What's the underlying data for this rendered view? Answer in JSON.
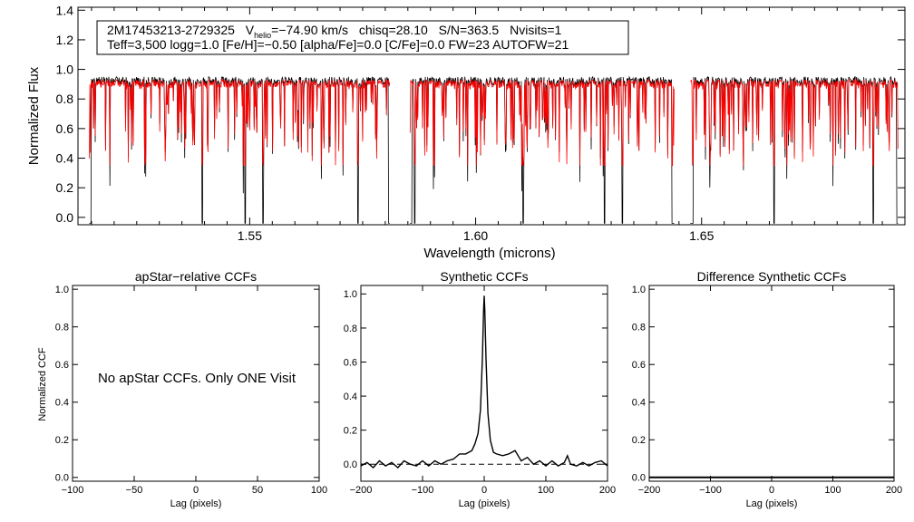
{
  "figure": {
    "star_id": "2M17453213-2729325",
    "vhelio_label": "V",
    "vhelio_subscript": "helio",
    "vhelio_value": "=−74.90 km/s",
    "chisq": "chisq=28.10",
    "snr": "S/N=363.5",
    "nvisits": "Nvisits=1",
    "params_line": "Teff=3,500 logg=1.0 [Fe/H]=−0.50 [alpha/Fe]=0.0 [C/Fe]=0.0 FW=23 AUTOFW=21"
  },
  "colors": {
    "observed": "#000000",
    "model": "#ff0000",
    "frame": "#000000"
  },
  "chart_data": [
    {
      "id": "spectrum",
      "type": "line",
      "title": "",
      "xlabel": "Wavelength (microns)",
      "ylabel": "Normalized Flux",
      "xlim": [
        1.512,
        1.695
      ],
      "ylim": [
        -0.05,
        1.42
      ],
      "xticks": [
        1.55,
        1.6,
        1.65
      ],
      "xtick_labels": [
        "1.55",
        "1.60",
        "1.65"
      ],
      "yticks": [
        0.0,
        0.2,
        0.4,
        0.6,
        0.8,
        1.0,
        1.2,
        1.4
      ],
      "ytick_labels": [
        "0.0",
        "0.2",
        "0.4",
        "0.6",
        "0.8",
        "1.0",
        "1.2",
        "1.4"
      ],
      "detector_chips": [
        [
          1.5145,
          1.581
        ],
        [
          1.5855,
          1.644
        ],
        [
          1.6475,
          1.6935
        ]
      ],
      "deep_lines": [
        1.5145,
        1.5395,
        1.549,
        1.553,
        1.574,
        1.5865,
        1.6105,
        1.6285,
        1.6325,
        1.6435,
        1.648,
        1.666,
        1.688
      ],
      "series": [
        {
          "name": "Observed spectrum",
          "color": "#000000",
          "continuum": 0.97
        },
        {
          "name": "Best-fit synthetic",
          "color": "#ff0000",
          "continuum": 0.95
        }
      ]
    },
    {
      "id": "apstar-ccf",
      "type": "line",
      "title": "apStar−relative CCFs",
      "xlabel": "Lag (pixels)",
      "ylabel": "Normalized CCF",
      "xlim": [
        -100,
        100
      ],
      "ylim": [
        -0.02,
        1.02
      ],
      "xticks": [
        -100,
        -50,
        0,
        50,
        100
      ],
      "xtick_labels": [
        "−100",
        "−50",
        "0",
        "50",
        "100"
      ],
      "yticks": [
        0.0,
        0.2,
        0.4,
        0.6,
        0.8,
        1.0
      ],
      "ytick_labels": [
        "0.0",
        "0.2",
        "0.4",
        "0.6",
        "0.8",
        "1.0"
      ],
      "annotation": "No apStar CCFs.  Only ONE Visit",
      "series": []
    },
    {
      "id": "synthetic-ccf",
      "type": "line",
      "title": "Synthetic CCFs",
      "xlabel": "Lag (pixels)",
      "ylabel": "",
      "xlim": [
        -200,
        200
      ],
      "ylim": [
        -0.1,
        1.05
      ],
      "xticks": [
        -200,
        -100,
        0,
        100,
        200
      ],
      "xtick_labels": [
        "−200",
        "−100",
        "0",
        "100",
        "200"
      ],
      "yticks": [
        0.0,
        0.2,
        0.4,
        0.6,
        0.8,
        1.0
      ],
      "ytick_labels": [
        "0.0",
        "0.2",
        "0.4",
        "0.6",
        "0.8",
        "1.0"
      ],
      "reference_line": 0.0,
      "series": [
        {
          "name": "Synthetic CCF",
          "color": "#000000",
          "x": [
            -200,
            -190,
            -180,
            -170,
            -160,
            -150,
            -140,
            -130,
            -120,
            -110,
            -100,
            -90,
            -80,
            -70,
            -60,
            -50,
            -40,
            -30,
            -20,
            -15,
            -10,
            -6,
            -3,
            -1,
            0,
            1,
            3,
            6,
            10,
            15,
            20,
            30,
            40,
            50,
            60,
            70,
            80,
            90,
            100,
            110,
            120,
            130,
            135,
            140,
            150,
            160,
            170,
            180,
            190,
            200
          ],
          "y": [
            -0.01,
            0.01,
            -0.02,
            0.02,
            -0.01,
            0.01,
            -0.02,
            0.02,
            0.0,
            -0.01,
            0.02,
            -0.01,
            0.02,
            0.0,
            0.02,
            0.03,
            0.06,
            0.06,
            0.08,
            0.12,
            0.18,
            0.32,
            0.62,
            0.9,
            0.99,
            0.9,
            0.62,
            0.3,
            0.14,
            0.07,
            0.06,
            0.05,
            0.06,
            0.08,
            0.02,
            0.04,
            0.0,
            0.02,
            -0.01,
            0.02,
            -0.01,
            0.01,
            0.05,
            0.0,
            -0.01,
            0.01,
            -0.01,
            0.01,
            0.02,
            -0.01
          ]
        }
      ]
    },
    {
      "id": "difference-ccf",
      "type": "line",
      "title": "Difference Synthetic CCFs",
      "xlabel": "Lag (pixels)",
      "ylabel": "",
      "xlim": [
        -200,
        200
      ],
      "ylim": [
        -0.02,
        1.02
      ],
      "xticks": [
        -200,
        -100,
        0,
        100,
        200
      ],
      "xtick_labels": [
        "−200",
        "−100",
        "0",
        "100",
        "200"
      ],
      "yticks": [
        0.0,
        0.2,
        0.4,
        0.6,
        0.8,
        1.0
      ],
      "ytick_labels": [
        "0.0",
        "0.2",
        "0.4",
        "0.6",
        "0.8",
        "1.0"
      ],
      "series": [
        {
          "name": "Difference CCF",
          "color": "#000000",
          "x": [
            -200,
            -100,
            0,
            100,
            200
          ],
          "y": [
            0.0,
            0.0,
            0.0,
            0.0,
            0.0
          ]
        }
      ]
    }
  ]
}
